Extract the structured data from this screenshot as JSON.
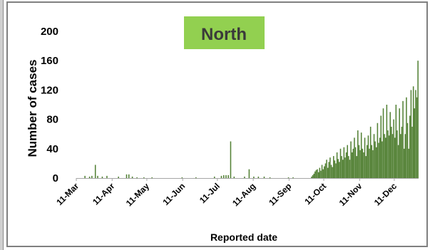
{
  "chart_data": {
    "type": "bar",
    "title": "North",
    "xlabel": "Reported date",
    "ylabel": "Number of cases",
    "ylim": [
      0,
      200
    ],
    "yticks": [
      0,
      40,
      80,
      120,
      160,
      200
    ],
    "xticks": [
      "11-Mar",
      "11-Apr",
      "11-May",
      "11-Jun",
      "11-Jul",
      "11-Aug",
      "11-Sep",
      "11-Oct",
      "11-Nov",
      "11-Dec"
    ],
    "x_start": "2020-03-11",
    "x_end": "2020-12-31",
    "grid": false,
    "legend": "none",
    "colors": {
      "bar": "#538135",
      "title_box": "#92d050",
      "title_text": "#3a3a3a",
      "frame": "#808080"
    },
    "series": [
      {
        "points": [
          [
            "2020-03-18",
            3
          ],
          [
            "2020-03-22",
            2
          ],
          [
            "2020-03-24",
            3
          ],
          [
            "2020-03-27",
            18
          ],
          [
            "2020-03-29",
            3
          ],
          [
            "2020-04-02",
            2
          ],
          [
            "2020-04-06",
            3
          ],
          [
            "2020-04-16",
            2
          ],
          [
            "2020-04-23",
            5
          ],
          [
            "2020-04-25",
            5
          ],
          [
            "2020-04-28",
            2
          ],
          [
            "2020-05-02",
            1
          ],
          [
            "2020-05-08",
            1
          ],
          [
            "2020-05-15",
            1
          ],
          [
            "2020-06-10",
            1
          ],
          [
            "2020-06-22",
            1
          ],
          [
            "2020-07-08",
            2
          ],
          [
            "2020-07-14",
            3
          ],
          [
            "2020-07-16",
            4
          ],
          [
            "2020-07-18",
            4
          ],
          [
            "2020-07-20",
            4
          ],
          [
            "2020-07-22",
            50
          ],
          [
            "2020-07-25",
            2
          ],
          [
            "2020-08-03",
            2
          ],
          [
            "2020-08-07",
            12
          ],
          [
            "2020-08-11",
            2
          ],
          [
            "2020-08-15",
            2
          ],
          [
            "2020-08-20",
            2
          ],
          [
            "2020-08-25",
            1
          ],
          [
            "2020-09-10",
            1
          ],
          [
            "2020-09-14",
            1
          ],
          [
            "2020-09-30",
            2
          ],
          [
            "2020-10-01",
            4
          ],
          [
            "2020-10-02",
            6
          ],
          [
            "2020-10-03",
            9
          ],
          [
            "2020-10-04",
            11
          ],
          [
            "2020-10-05",
            12
          ],
          [
            "2020-10-06",
            8
          ],
          [
            "2020-10-07",
            14
          ],
          [
            "2020-10-08",
            10
          ],
          [
            "2020-10-09",
            18
          ],
          [
            "2020-10-10",
            12
          ],
          [
            "2020-10-11",
            16
          ],
          [
            "2020-10-12",
            20
          ],
          [
            "2020-10-13",
            25
          ],
          [
            "2020-10-14",
            14
          ],
          [
            "2020-10-15",
            22
          ],
          [
            "2020-10-16",
            28
          ],
          [
            "2020-10-17",
            18
          ],
          [
            "2020-10-18",
            15
          ],
          [
            "2020-10-19",
            30
          ],
          [
            "2020-10-20",
            24
          ],
          [
            "2020-10-21",
            20
          ],
          [
            "2020-10-22",
            35
          ],
          [
            "2020-10-23",
            26
          ],
          [
            "2020-10-24",
            22
          ],
          [
            "2020-10-25",
            40
          ],
          [
            "2020-10-26",
            30
          ],
          [
            "2020-10-27",
            25
          ],
          [
            "2020-10-28",
            42
          ],
          [
            "2020-10-29",
            28
          ],
          [
            "2020-10-30",
            35
          ],
          [
            "2020-10-31",
            45
          ],
          [
            "2020-11-01",
            30
          ],
          [
            "2020-11-02",
            25
          ],
          [
            "2020-11-03",
            50
          ],
          [
            "2020-11-04",
            35
          ],
          [
            "2020-11-05",
            40
          ],
          [
            "2020-11-06",
            55
          ],
          [
            "2020-11-07",
            42
          ],
          [
            "2020-11-08",
            30
          ],
          [
            "2020-11-09",
            65
          ],
          [
            "2020-11-10",
            45
          ],
          [
            "2020-11-11",
            38
          ],
          [
            "2020-11-12",
            62
          ],
          [
            "2020-11-13",
            40
          ],
          [
            "2020-11-14",
            35
          ],
          [
            "2020-11-15",
            55
          ],
          [
            "2020-11-16",
            30
          ],
          [
            "2020-11-17",
            45
          ],
          [
            "2020-11-18",
            58
          ],
          [
            "2020-11-19",
            40
          ],
          [
            "2020-11-20",
            70
          ],
          [
            "2020-11-21",
            45
          ],
          [
            "2020-11-22",
            38
          ],
          [
            "2020-11-23",
            60
          ],
          [
            "2020-11-24",
            50
          ],
          [
            "2020-11-25",
            42
          ],
          [
            "2020-11-26",
            75
          ],
          [
            "2020-11-27",
            48
          ],
          [
            "2020-11-28",
            55
          ],
          [
            "2020-11-29",
            85
          ],
          [
            "2020-11-30",
            50
          ],
          [
            "2020-12-01",
            95
          ],
          [
            "2020-12-02",
            60
          ],
          [
            "2020-12-03",
            55
          ],
          [
            "2020-12-04",
            100
          ],
          [
            "2020-12-05",
            65
          ],
          [
            "2020-12-06",
            58
          ],
          [
            "2020-12-07",
            90
          ],
          [
            "2020-12-08",
            70
          ],
          [
            "2020-12-09",
            60
          ],
          [
            "2020-12-10",
            80
          ],
          [
            "2020-12-11",
            55
          ],
          [
            "2020-12-12",
            100
          ],
          [
            "2020-12-13",
            65
          ],
          [
            "2020-12-14",
            45
          ],
          [
            "2020-12-15",
            95
          ],
          [
            "2020-12-16",
            60
          ],
          [
            "2020-12-17",
            70
          ],
          [
            "2020-12-18",
            105
          ],
          [
            "2020-12-19",
            40
          ],
          [
            "2020-12-20",
            60
          ],
          [
            "2020-12-21",
            110
          ],
          [
            "2020-12-22",
            75
          ],
          [
            "2020-12-23",
            40
          ],
          [
            "2020-12-24",
            85
          ],
          [
            "2020-12-25",
            120
          ],
          [
            "2020-12-26",
            70
          ],
          [
            "2020-12-27",
            125
          ],
          [
            "2020-12-28",
            95
          ],
          [
            "2020-12-29",
            120
          ],
          [
            "2020-12-30",
            110
          ],
          [
            "2020-12-31",
            160
          ]
        ]
      }
    ]
  }
}
